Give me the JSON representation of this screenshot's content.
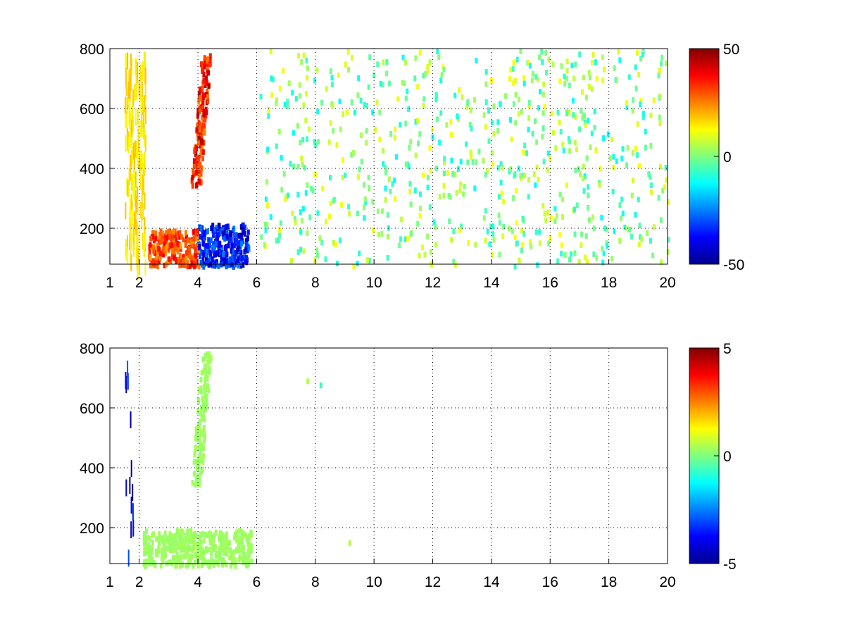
{
  "chart_data": [
    {
      "type": "heatmap",
      "title": "",
      "xlabel": "",
      "ylabel": "",
      "xlim": [
        1,
        20
      ],
      "ylim": [
        80,
        800
      ],
      "x_ticks": [
        "1",
        "2",
        "4",
        "6",
        "8",
        "10",
        "12",
        "14",
        "16",
        "18",
        "20"
      ],
      "y_ticks": [
        "200",
        "400",
        "600",
        "800"
      ],
      "grid": true,
      "colormap": "jet",
      "colorbar": {
        "min": -50,
        "max": 50,
        "ticks": [
          "50",
          "0",
          "-50"
        ]
      },
      "features": [
        {
          "x": [
            3.9,
            4.3
          ],
          "y": [
            350,
            790
          ],
          "value": 35,
          "kind": "ridge"
        },
        {
          "x": [
            2.3,
            4.0
          ],
          "y": [
            80,
            200
          ],
          "value": 30,
          "kind": "band"
        },
        {
          "x": [
            4.0,
            5.7
          ],
          "y": [
            80,
            220
          ],
          "value": -35,
          "kind": "band"
        },
        {
          "x": [
            1.5,
            2.2
          ],
          "y": [
            80,
            800
          ],
          "value": 15,
          "kind": "stripes"
        },
        {
          "x": [
            6.0,
            20.0
          ],
          "y": [
            80,
            800
          ],
          "value": 0,
          "kind": "scatter"
        }
      ]
    },
    {
      "type": "heatmap",
      "title": "",
      "xlabel": "",
      "ylabel": "",
      "xlim": [
        1,
        20
      ],
      "ylim": [
        80,
        800
      ],
      "x_ticks": [
        "1",
        "2",
        "4",
        "6",
        "8",
        "10",
        "12",
        "14",
        "16",
        "18",
        "20"
      ],
      "y_ticks": [
        "200",
        "400",
        "600",
        "800"
      ],
      "grid": true,
      "colormap": "jet",
      "colorbar": {
        "min": -5,
        "max": 5,
        "ticks": [
          "5",
          "0",
          "-5"
        ]
      },
      "features": [
        {
          "x": [
            3.9,
            4.3
          ],
          "y": [
            350,
            800
          ],
          "value": 0.3,
          "kind": "ridge"
        },
        {
          "x": [
            2.1,
            5.8
          ],
          "y": [
            80,
            200
          ],
          "value": 0.3,
          "kind": "band"
        },
        {
          "x": [
            1.5,
            1.8
          ],
          "y": [
            80,
            760
          ],
          "value": -4,
          "kind": "stripes"
        },
        {
          "x": [
            7.0,
            9.3
          ],
          "y": [
            100,
            700
          ],
          "value": 0,
          "kind": "scatter"
        }
      ]
    }
  ]
}
